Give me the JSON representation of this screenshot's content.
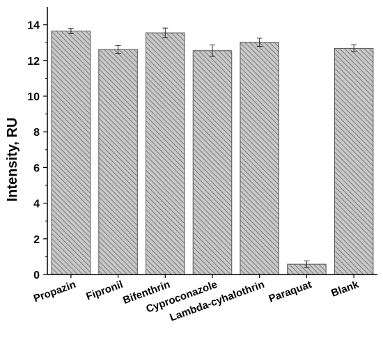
{
  "chart_data": {
    "type": "bar",
    "title": "",
    "xlabel": "",
    "ylabel": "Intensity, RU",
    "ylim": [
      0,
      15
    ],
    "yticks": [
      0,
      2,
      4,
      6,
      8,
      10,
      12,
      14
    ],
    "grid": false,
    "legend": "none",
    "bar_fill": "hatched-gray",
    "colors": {
      "bar": "#c8c8c8",
      "hatch": "#7a7a7a",
      "axis": "#000000"
    },
    "categories": [
      "Propazin",
      "Fipronil",
      "Bifenthrin",
      "Cyproconazole",
      "Lambda-cyhalothrin",
      "Paraquat",
      "Blank"
    ],
    "values": [
      13.65,
      12.62,
      13.55,
      12.55,
      13.02,
      0.58,
      12.68
    ],
    "errors": [
      0.15,
      0.22,
      0.27,
      0.32,
      0.23,
      0.18,
      0.2
    ]
  }
}
